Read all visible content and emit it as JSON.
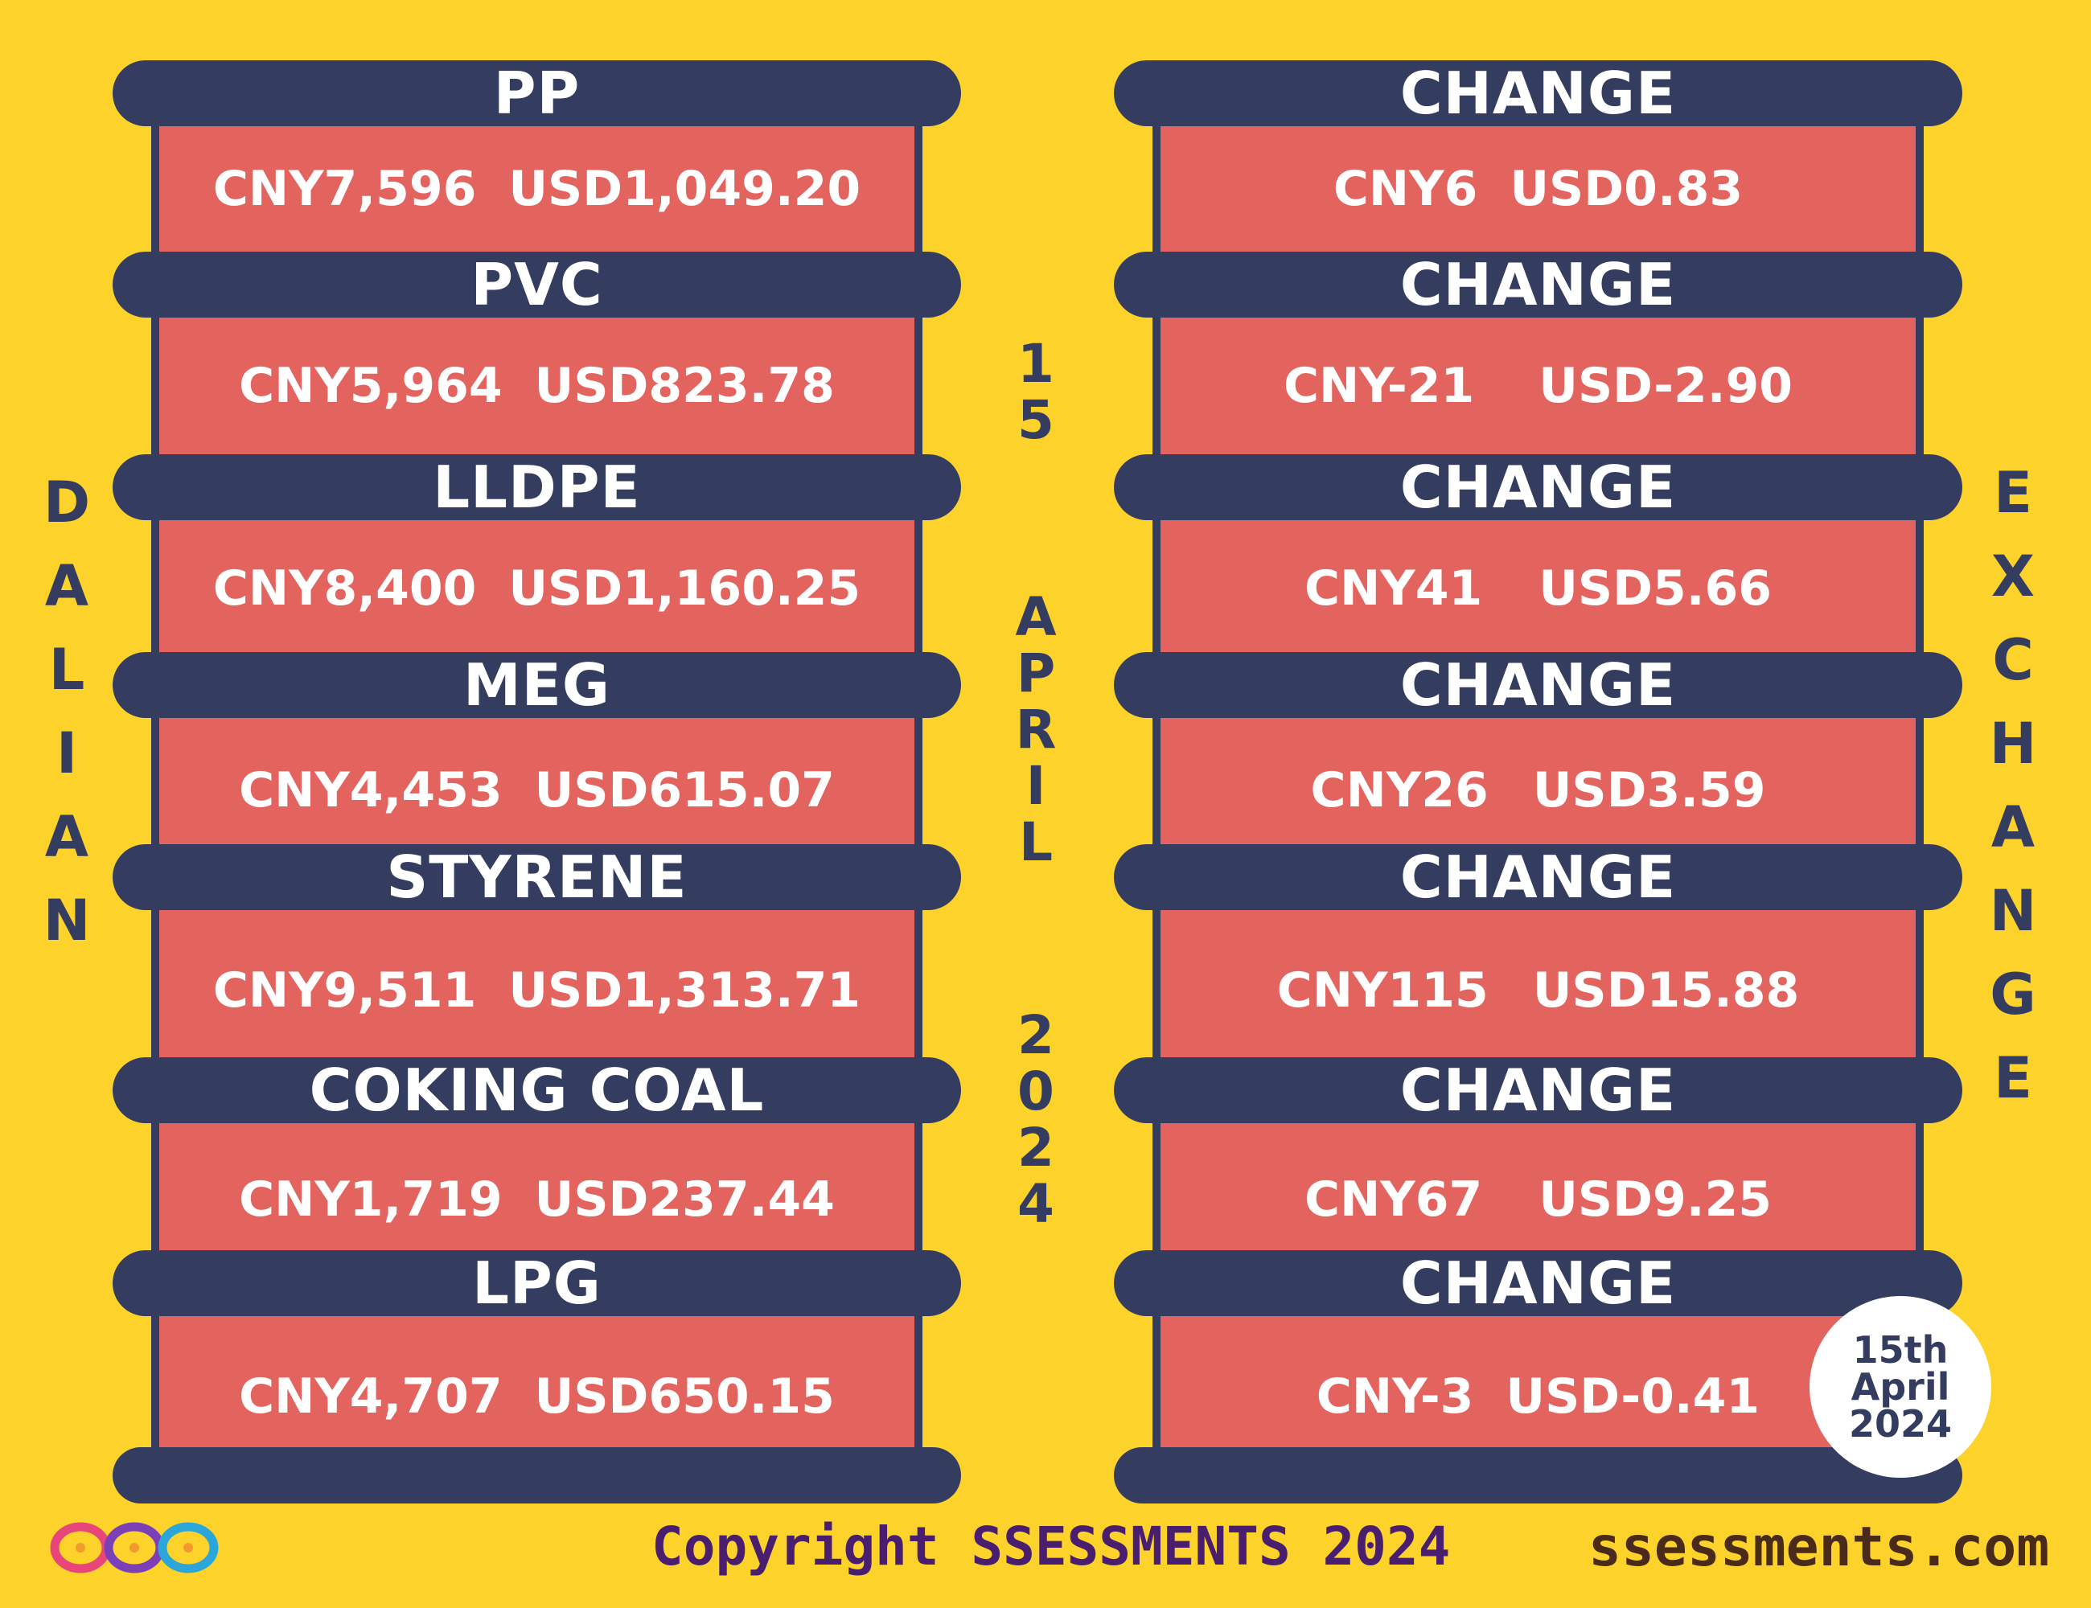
{
  "left_label": "DALIAN",
  "right_label": "EXCHANGE",
  "center_date": {
    "day": "15",
    "month": "APRIL",
    "year": "2024"
  },
  "badge": {
    "line1": "15th",
    "line2": "April",
    "line3": "2024"
  },
  "commodities": [
    {
      "name": "PP",
      "cny": "CNY7,596",
      "usd": "USD1,049.20",
      "change_label": "CHANGE",
      "change_cny": "CNY6",
      "change_usd": "USD0.83"
    },
    {
      "name": "PVC",
      "cny": "CNY5,964",
      "usd": "USD823.78",
      "change_label": "CHANGE",
      "change_cny": "CNY-21",
      "change_usd": "USD-2.90"
    },
    {
      "name": "LLDPE",
      "cny": "CNY8,400",
      "usd": "USD1,160.25",
      "change_label": "CHANGE",
      "change_cny": "CNY41",
      "change_usd": "USD5.66"
    },
    {
      "name": "MEG",
      "cny": "CNY4,453",
      "usd": "USD615.07",
      "change_label": "CHANGE",
      "change_cny": "CNY26",
      "change_usd": "USD3.59"
    },
    {
      "name": "STYRENE",
      "cny": "CNY9,511",
      "usd": "USD1,313.71",
      "change_label": "CHANGE",
      "change_cny": "CNY115",
      "change_usd": "USD15.88"
    },
    {
      "name": "COKING COAL",
      "cny": "CNY1,719",
      "usd": "USD237.44",
      "change_label": "CHANGE",
      "change_cny": "CNY67",
      "change_usd": "USD9.25"
    },
    {
      "name": "LPG",
      "cny": "CNY4,707",
      "usd": "USD650.15",
      "change_label": "CHANGE",
      "change_cny": "CNY-3",
      "change_usd": "USD-0.41"
    }
  ],
  "footer": {
    "copyright": "Copyright SSESSMENTS 2024",
    "website": "ssessments.com"
  },
  "colors": {
    "background": "#fdd22a",
    "bar": "#343d5f",
    "panel": "#e3645f",
    "text": "#ffffff"
  }
}
